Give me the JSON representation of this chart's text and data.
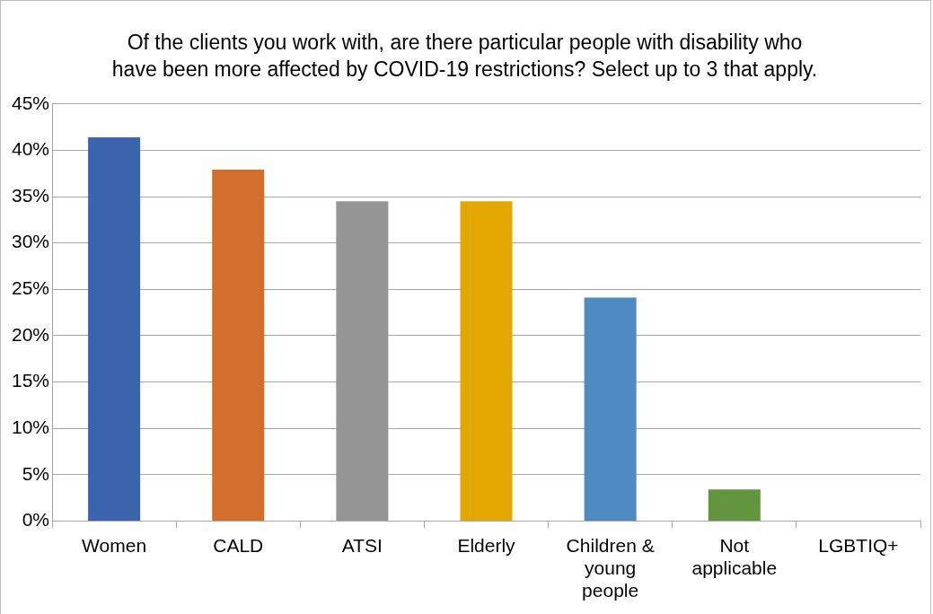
{
  "chart_data": {
    "type": "bar",
    "title": "Of the clients you work with, are there particular people with disability who have been more affected by COVID-19 restrictions? Select up to 3 that apply.",
    "categories": [
      "Women",
      "CALD",
      "ATSI",
      "Elderly",
      "Children & young people",
      "Not applicable",
      "LGBTIQ+"
    ],
    "values": [
      41.4,
      37.9,
      34.5,
      34.5,
      24.1,
      3.4,
      0
    ],
    "colors": [
      "#3c64ad",
      "#d46e2c",
      "#959595",
      "#e3a800",
      "#4f8bc0",
      "#63953f",
      "#2f5597"
    ],
    "ylim": [
      0,
      45
    ],
    "yticks": [
      {
        "value": 0,
        "label": "0%"
      },
      {
        "value": 5,
        "label": "5%"
      },
      {
        "value": 10,
        "label": "10%"
      },
      {
        "value": 15,
        "label": "15%"
      },
      {
        "value": 20,
        "label": "20%"
      },
      {
        "value": 25,
        "label": "25%"
      },
      {
        "value": 30,
        "label": "30%"
      },
      {
        "value": 35,
        "label": "35%"
      },
      {
        "value": 40,
        "label": "40%"
      },
      {
        "value": 45,
        "label": "45%"
      }
    ],
    "grid": "y",
    "legend": false
  }
}
